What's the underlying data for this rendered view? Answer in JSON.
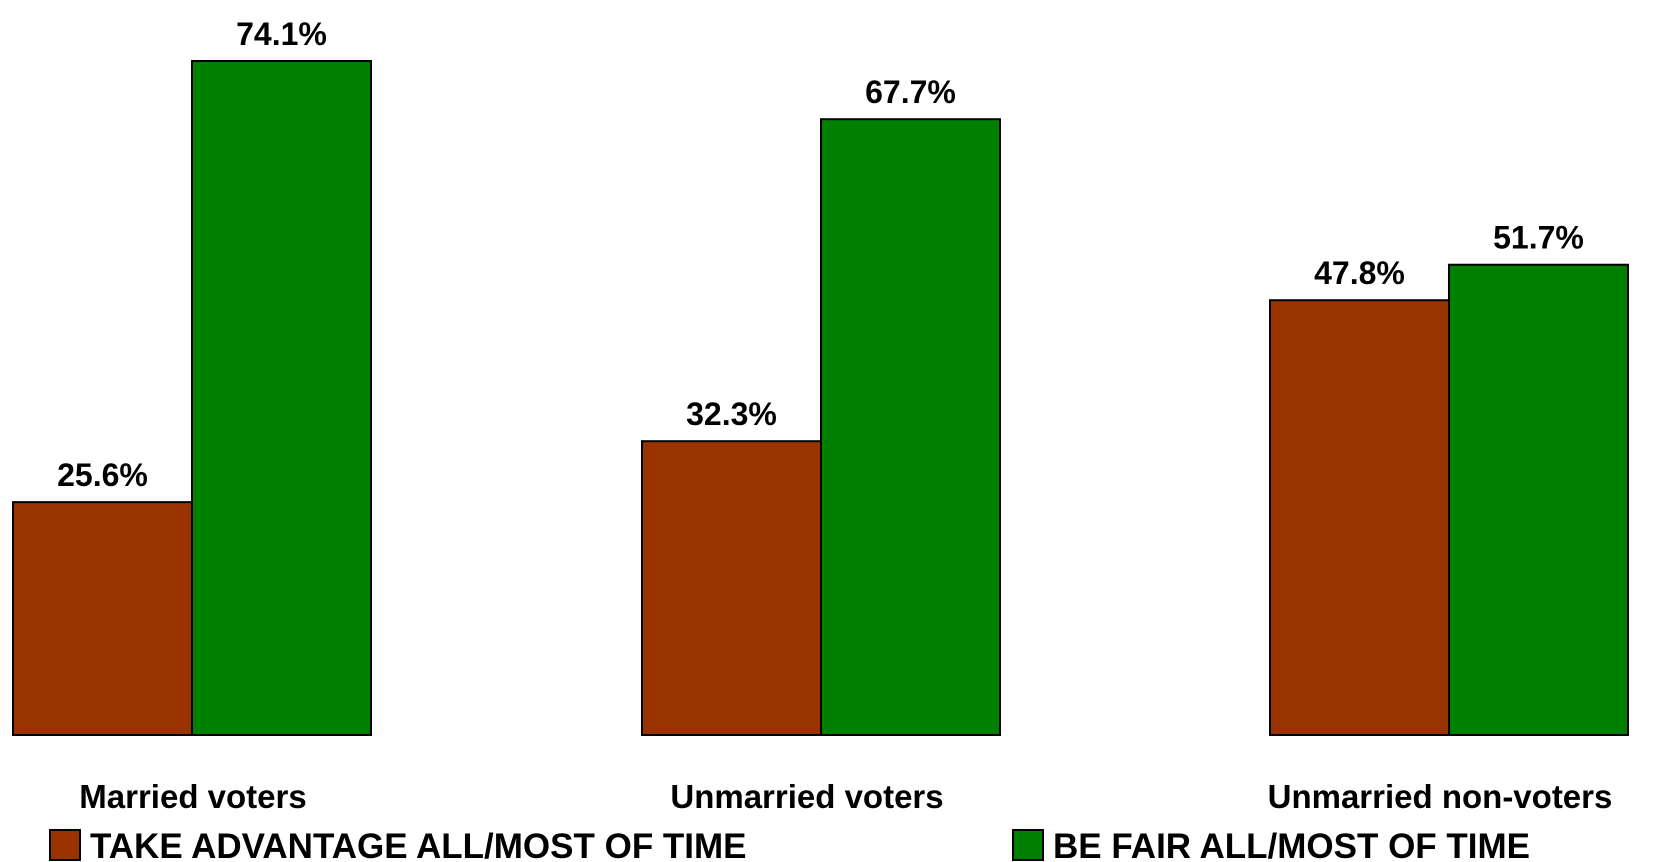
{
  "chart_data": {
    "type": "bar",
    "categories": [
      "Married voters",
      "Unmarried voters",
      "Unmarried non-voters"
    ],
    "series": [
      {
        "name": "TAKE ADVANTAGE ALL/MOST OF TIME",
        "values": [
          25.6,
          32.3,
          47.8
        ],
        "labels": [
          "25.6%",
          "32.3%",
          "47.8%"
        ],
        "color": "#993300"
      },
      {
        "name": "BE FAIR ALL/MOST OF TIME",
        "values": [
          74.1,
          67.7,
          51.7
        ],
        "labels": [
          "74.1%",
          "67.7%",
          "51.7%"
        ],
        "color": "#008000"
      }
    ],
    "title": "",
    "xlabel": "",
    "ylabel": "",
    "ylim": [
      0,
      80
    ],
    "grid": false,
    "legend_position": "bottom"
  }
}
